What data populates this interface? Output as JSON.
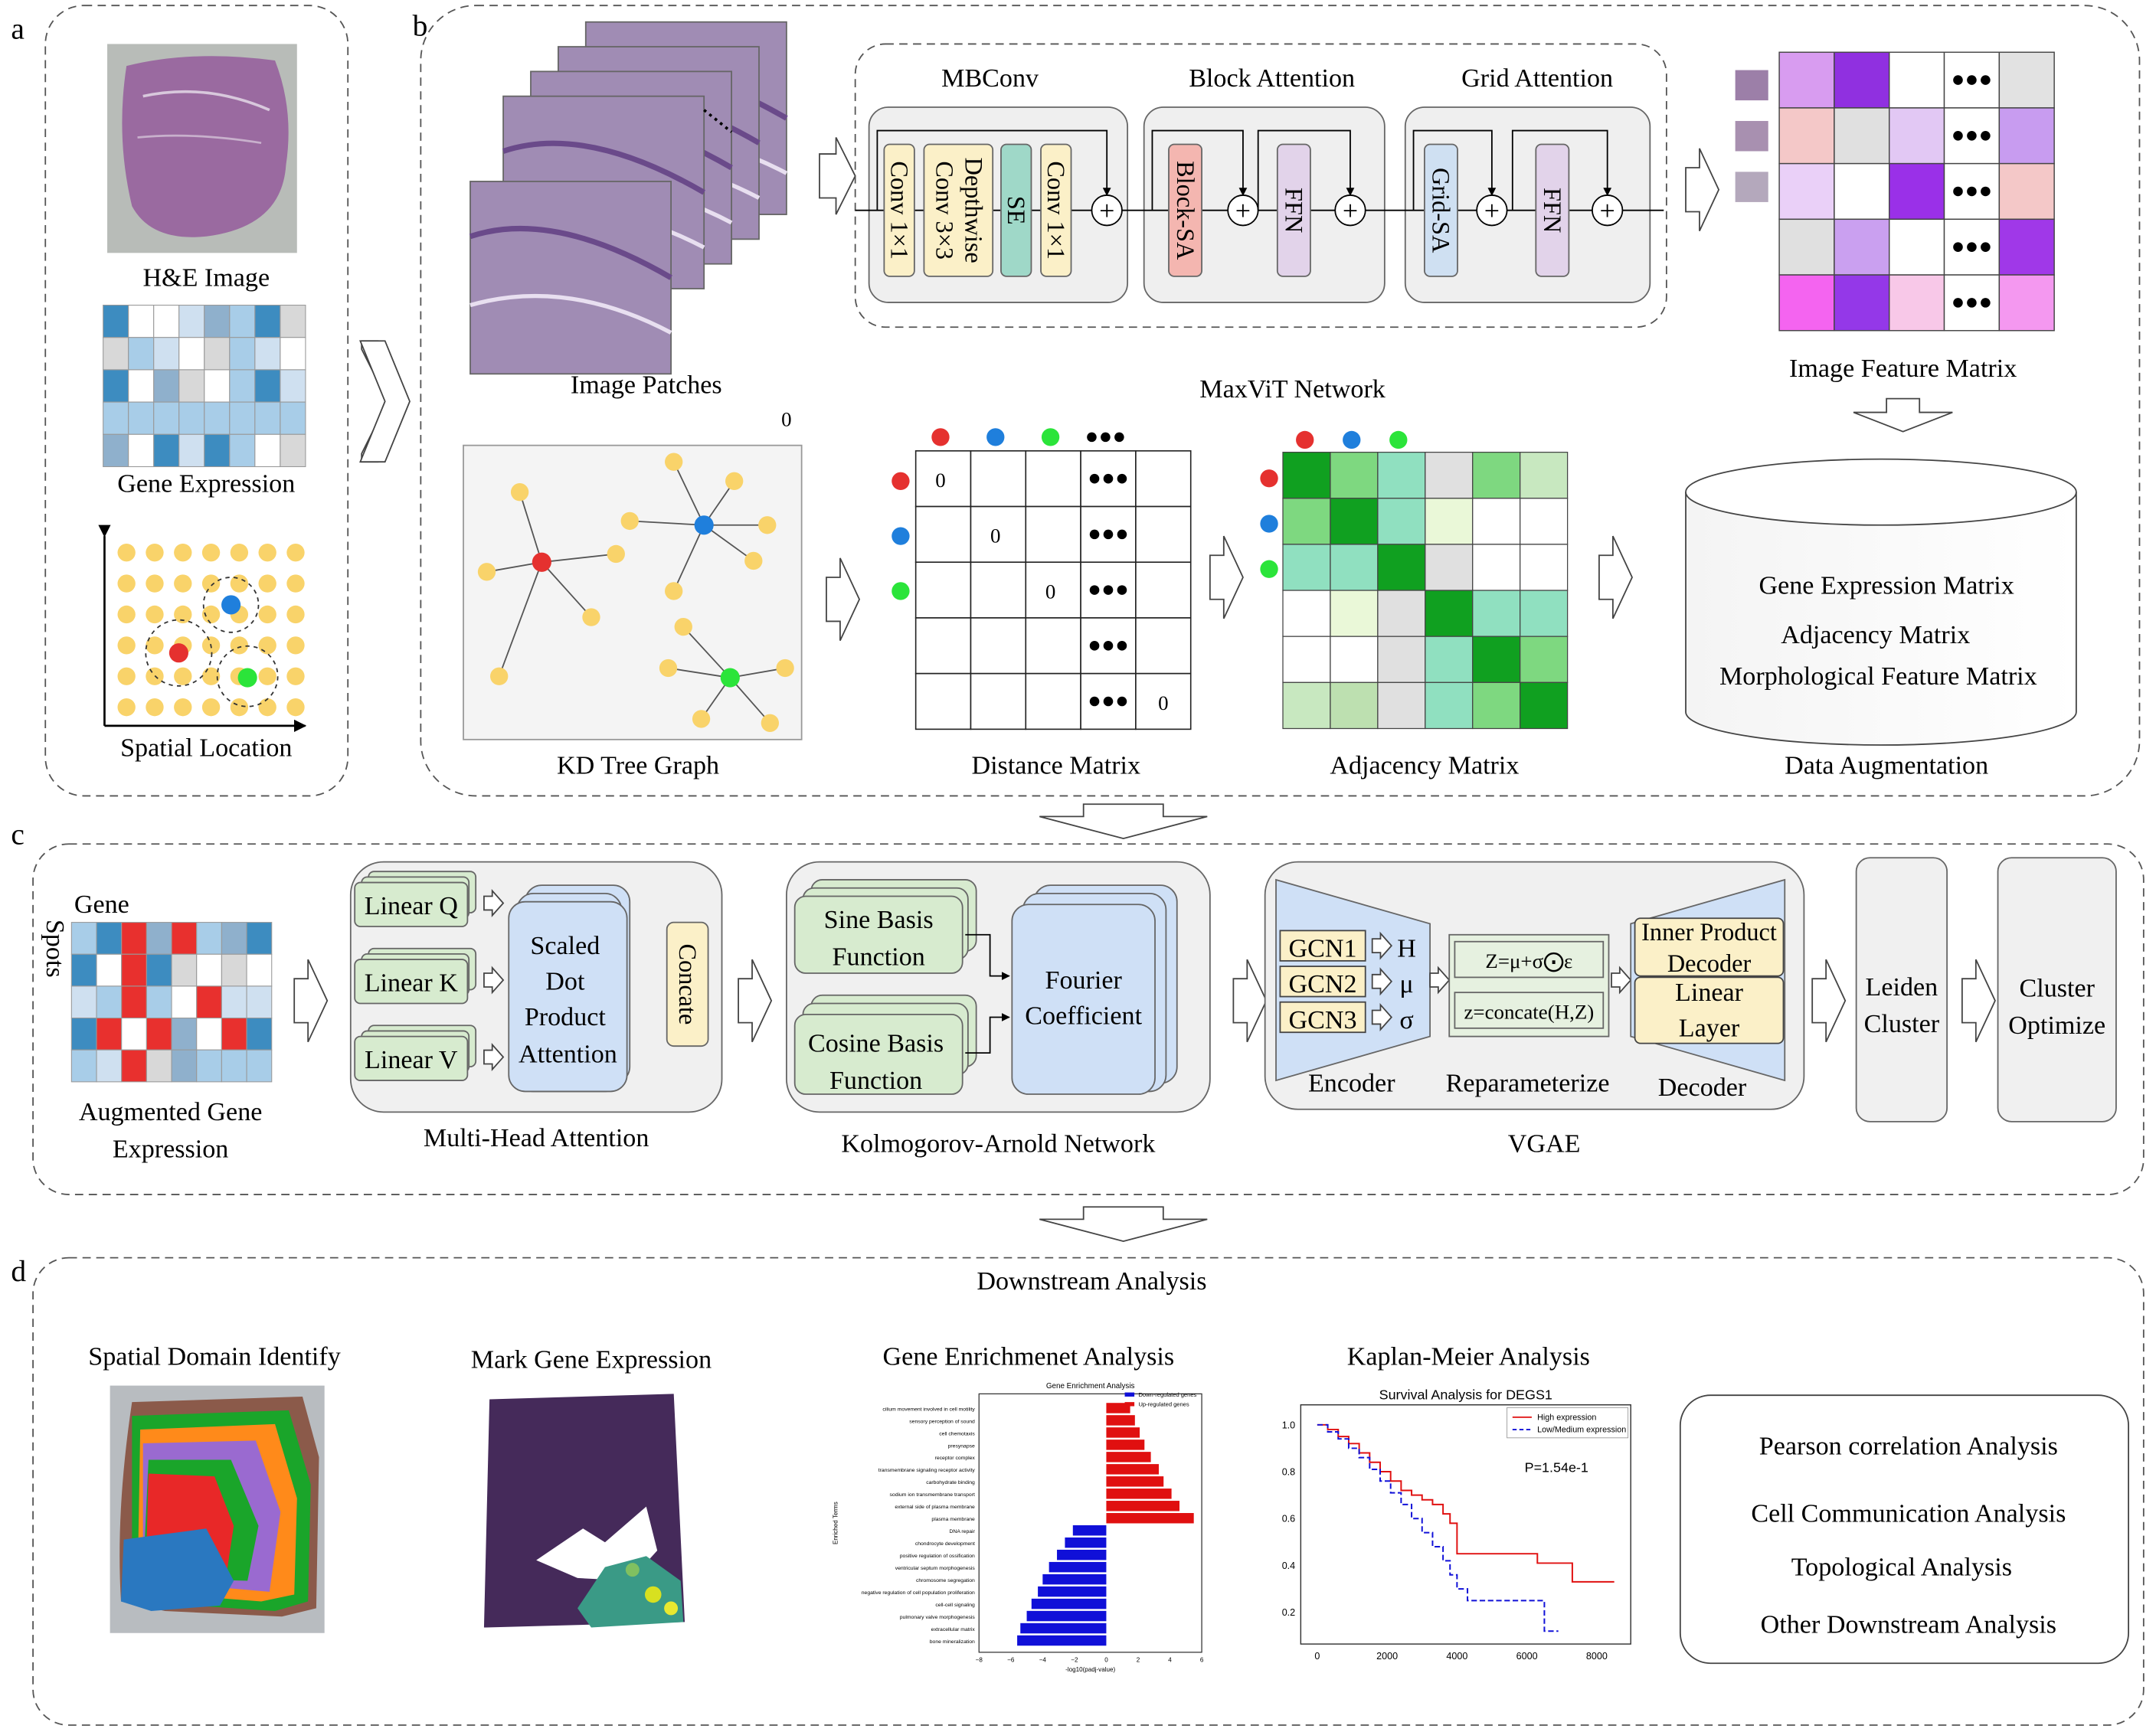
{
  "panels": {
    "a": "a",
    "b": "b",
    "c": "c",
    "d": "d"
  },
  "panel_a": {
    "he_image": "H&E Image",
    "gene_expression": "Gene Expression",
    "spatial_location": "Spatial Location"
  },
  "panel_b": {
    "image_patches": "Image Patches",
    "maxvit_network": "MaxViT Network",
    "mbconv": "MBConv",
    "block_attention": "Block Attention",
    "grid_attention": "Grid Attention",
    "conv1x1_a": "Conv 1×1",
    "dw_conv_1": "Depthwise",
    "dw_conv_2": "Conv 3×3",
    "se": "SE",
    "conv1x1_b": "Conv 1×1",
    "block_sa": "Block-SA",
    "ffn_a": "FFN",
    "grid_sa": "Grid-SA",
    "ffn_b": "FFN",
    "image_feature_matrix": "Image Feature Matrix",
    "kd_tree_graph": "KD Tree Graph",
    "stray_zero": "0",
    "distance_matrix": "Distance Matrix",
    "distance_zero": "0",
    "adjacency_matrix": "Adjacency Matrix",
    "data_augmentation": "Data Augmentation",
    "db_items": [
      "Gene Expression Matrix",
      "Adjacency Matrix",
      "Morphological Feature Matrix"
    ]
  },
  "panel_c": {
    "gene": "Gene",
    "spots": "Spots",
    "augmented_1": "Augmented Gene",
    "augmented_2": "Expression",
    "linear_q": "Linear Q",
    "linear_k": "Linear K",
    "linear_v": "Linear V",
    "sdpa": [
      "Scaled",
      "Dot",
      "Product",
      "Attention"
    ],
    "concate": "Concate",
    "multi_head_attention": "Multi-Head Attention",
    "sine_basis": [
      "Sine Basis",
      "Function"
    ],
    "cosine_basis": [
      "Cosine Basis",
      "Function"
    ],
    "fourier": [
      "Fourier",
      "Coefficient"
    ],
    "kan": "Kolmogorov-Arnold Network",
    "gcn1": "GCN1",
    "gcn2": "GCN2",
    "gcn3": "GCN3",
    "sym_h": "H",
    "sym_mu": "μ",
    "sym_sigma": "σ",
    "reparam_eq1": "Z=μ+σ⨀ε",
    "reparam_eq2": "z=concate(H,Z)",
    "inner_product_decoder": [
      "Inner Product",
      "Decoder"
    ],
    "linear_layer": [
      "Linear",
      "Layer"
    ],
    "encoder": "Encoder",
    "reparameterize": "Reparameterize",
    "decoder": "Decoder",
    "vgae": "VGAE",
    "leiden": [
      "Leiden",
      "Cluster"
    ],
    "cluster_opt": [
      "Cluster",
      "Optimize"
    ]
  },
  "panel_d": {
    "title": "Downstream Analysis",
    "spatial_domain": "Spatial Domain Identify",
    "mark_gene": "Mark Gene Expression",
    "gene_enrichment": "Gene Enrichmenet Analysis",
    "kaplan_meier": "Kaplan-Meier Analysis",
    "other_list": [
      "Pearson correlation Analysis",
      "Cell Communication Analysis",
      "Topological Analysis",
      "Other Downstream Analysis"
    ]
  },
  "colors": {
    "conv": "#fbf0c8",
    "se": "#9fd8c8",
    "block_sa": "#f4b6b0",
    "ffn": "#e2d3ea",
    "grid_sa": "#cfe0f2",
    "linear": "#d7ebcf",
    "attention": "#cfe0f6",
    "red": "#e5312f",
    "blue": "#1f7fdc",
    "green": "#2be43a",
    "yellow_dot": "#f9d36a",
    "bar_up": "#e01010",
    "bar_down": "#1010d8"
  },
  "chart_data": [
    {
      "type": "bar",
      "title": "Gene Enrichment Analysis",
      "xlabel": "-log10(padj-value)",
      "ylabel": "Enriched Terms",
      "xlim": [
        -8,
        6
      ],
      "x_ticks": [
        "−8",
        "−6",
        "−4",
        "−2",
        "0",
        "2",
        "4",
        "6"
      ],
      "legend": [
        "Down-regulated genes",
        "Up-regulated genes"
      ],
      "legend_position": "top-right",
      "categories": [
        "cilium movement involved in cell motility",
        "sensory perception of sound",
        "cell chemotaxis",
        "presynapse",
        "receptor complex",
        "transmembrane signaling receptor activity",
        "carbohydrate binding",
        "sodium ion transmembrane transport",
        "external side of plasma membrane",
        "plasma membrane",
        "DNA repair",
        "chondrocyte development",
        "positive regulation of ossification",
        "ventricular septum morphogenesis",
        "chromosome segregation",
        "negative regulation of cell population proliferation",
        "cell-cell signaling",
        "pulmonary valve morphogenesis",
        "extracellular matrix",
        "bone mineralization"
      ],
      "series": [
        {
          "name": "Up-regulated genes",
          "values": [
            1.5,
            1.8,
            2.1,
            2.4,
            2.8,
            3.3,
            3.6,
            4.1,
            4.6,
            5.5,
            0,
            0,
            0,
            0,
            0,
            0,
            0,
            0,
            0,
            0
          ]
        },
        {
          "name": "Down-regulated genes",
          "values": [
            0,
            0,
            0,
            0,
            0,
            0,
            0,
            0,
            0,
            0,
            -2.1,
            -2.6,
            -3.1,
            -3.6,
            -4.0,
            -4.3,
            -4.7,
            -5.0,
            -5.4,
            -5.6
          ]
        }
      ]
    },
    {
      "type": "line",
      "title": "Survival Analysis for DEGS1",
      "xlim": [
        0,
        8500
      ],
      "ylim": [
        0.1,
        1.05
      ],
      "x_ticks": [
        0,
        2000,
        4000,
        6000,
        8000
      ],
      "y_ticks": [
        0.2,
        0.4,
        0.6,
        0.8,
        1.0
      ],
      "legend": [
        "High expression",
        "Low/Medium expression"
      ],
      "legend_position": "top-right",
      "annotation": "P=1.54e-1",
      "series": [
        {
          "name": "High expression",
          "x": [
            0,
            300,
            600,
            900,
            1200,
            1500,
            1800,
            2100,
            2400,
            2700,
            3000,
            3300,
            3600,
            3800,
            4000,
            4500,
            5500,
            6300,
            7300,
            8500
          ],
          "y": [
            1.0,
            0.98,
            0.95,
            0.92,
            0.88,
            0.84,
            0.8,
            0.76,
            0.72,
            0.7,
            0.68,
            0.66,
            0.62,
            0.58,
            0.45,
            0.45,
            0.45,
            0.41,
            0.33,
            0.33
          ]
        },
        {
          "name": "Low/Medium expression",
          "x": [
            0,
            300,
            600,
            900,
            1200,
            1500,
            1800,
            2100,
            2400,
            2700,
            3000,
            3300,
            3600,
            3800,
            4000,
            4300,
            5000,
            6200,
            6500,
            6900
          ],
          "y": [
            1.0,
            0.97,
            0.94,
            0.9,
            0.86,
            0.81,
            0.76,
            0.71,
            0.66,
            0.6,
            0.54,
            0.48,
            0.42,
            0.36,
            0.3,
            0.25,
            0.25,
            0.25,
            0.12,
            0.12
          ]
        }
      ]
    }
  ]
}
